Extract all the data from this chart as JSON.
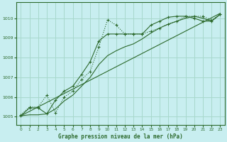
{
  "title": "Graphe pression niveau de la mer (hPa)",
  "bg_color": "#c8eef0",
  "grid_color": "#a8d8cc",
  "line_color": "#2d6a2d",
  "xlim": [
    -0.5,
    23.5
  ],
  "ylim": [
    1004.6,
    1010.8
  ],
  "yticks": [
    1005,
    1006,
    1007,
    1008,
    1009,
    1010
  ],
  "xticks": [
    0,
    1,
    2,
    3,
    4,
    5,
    6,
    7,
    8,
    9,
    10,
    11,
    12,
    13,
    14,
    15,
    16,
    17,
    18,
    19,
    20,
    21,
    22,
    23
  ],
  "series1_x": [
    0,
    1,
    2,
    3,
    4,
    5,
    6,
    7,
    8,
    9,
    10,
    11,
    12,
    13,
    14,
    15,
    16,
    17,
    18,
    19,
    20,
    21,
    22,
    23
  ],
  "series1_y": [
    1005.1,
    1005.5,
    1005.5,
    1006.1,
    1005.2,
    1006.0,
    1006.3,
    1006.9,
    1007.3,
    1008.55,
    1009.92,
    1009.65,
    1009.2,
    1009.2,
    1009.2,
    1009.35,
    1009.5,
    1009.7,
    1009.85,
    1010.1,
    1010.1,
    1010.1,
    1009.9,
    1010.2
  ],
  "series2_x": [
    0,
    23
  ],
  "series2_y": [
    1005.05,
    1010.25
  ],
  "series3_x": [
    0,
    1,
    2,
    3,
    4,
    5,
    6,
    7,
    8,
    9,
    10,
    11,
    12,
    13,
    14,
    15,
    16,
    17,
    18,
    19,
    20,
    21,
    22,
    23
  ],
  "series3_y": [
    1005.05,
    1005.1,
    1005.1,
    1005.15,
    1005.4,
    1005.8,
    1006.1,
    1006.55,
    1007.0,
    1007.65,
    1008.1,
    1008.35,
    1008.55,
    1008.7,
    1008.95,
    1009.25,
    1009.5,
    1009.7,
    1009.85,
    1010.0,
    1010.1,
    1010.0,
    1009.85,
    1010.2
  ],
  "series4_x": [
    0,
    1,
    2,
    3,
    4,
    5,
    6,
    7,
    8,
    9,
    10,
    11,
    12,
    13,
    14,
    15,
    16,
    17,
    18,
    19,
    20,
    21,
    22,
    23
  ],
  "series4_y": [
    1005.05,
    1005.45,
    1005.45,
    1005.15,
    1005.85,
    1006.3,
    1006.55,
    1007.15,
    1007.8,
    1008.85,
    1009.2,
    1009.2,
    1009.2,
    1009.2,
    1009.2,
    1009.65,
    1009.85,
    1010.05,
    1010.1,
    1010.1,
    1010.0,
    1009.85,
    1009.85,
    1010.2
  ]
}
